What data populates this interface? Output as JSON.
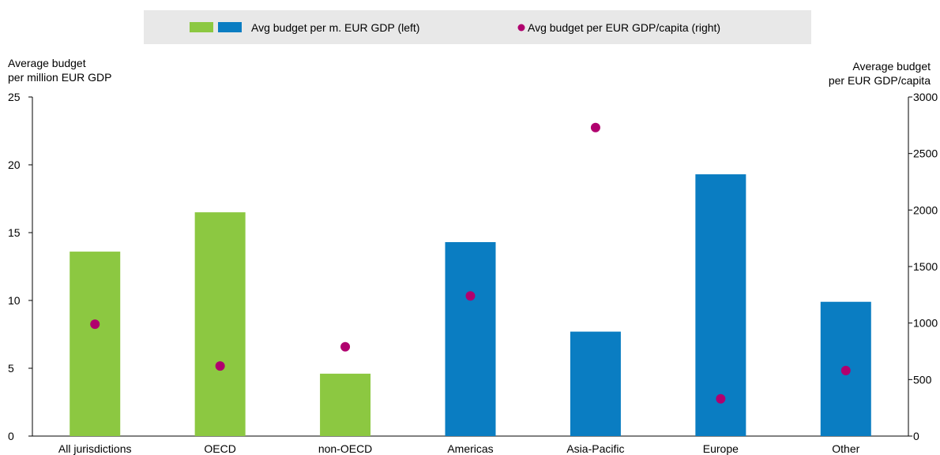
{
  "chart_data": {
    "type": "bar",
    "categories": [
      "All jurisdictions",
      "OECD",
      "non-OECD",
      "Americas",
      "Asia-Pacific",
      "Europe",
      "Other"
    ],
    "series": [
      {
        "name": "Avg budget per m. EUR GDP (left)",
        "axis": "left",
        "type": "bar",
        "values": [
          13.6,
          16.5,
          4.6,
          14.3,
          7.7,
          19.3,
          9.9
        ],
        "colors": [
          "#8cc841",
          "#8cc841",
          "#8cc841",
          "#0a7dc2",
          "#0a7dc2",
          "#0a7dc2",
          "#0a7dc2"
        ]
      },
      {
        "name": "Avg budget per EUR GDP/capita (right)",
        "axis": "right",
        "type": "scatter",
        "values": [
          990,
          620,
          790,
          1240,
          2730,
          330,
          580
        ],
        "color": "#b0006e"
      }
    ],
    "y_left": {
      "label_line1": "Average budget",
      "label_line2": "per million EUR GDP",
      "range": [
        0,
        25
      ],
      "ticks": [
        0,
        5,
        10,
        15,
        20,
        25
      ]
    },
    "y_right": {
      "label_line1": "Average budget",
      "label_line2": "per EUR GDP/capita",
      "range": [
        0,
        3000
      ],
      "ticks": [
        0,
        500,
        1000,
        1500,
        2000,
        2500,
        3000
      ]
    },
    "grid": false,
    "legend": {
      "placement": "top-center",
      "bar_label": "Avg budget per m. EUR GDP (left)",
      "dot_label": "Avg budget per EUR GDP/capita (right)",
      "swatch_colors": [
        "#8cc841",
        "#0a7dc2"
      ],
      "dot_color": "#b0006e",
      "background": "#e8e8e8"
    }
  }
}
